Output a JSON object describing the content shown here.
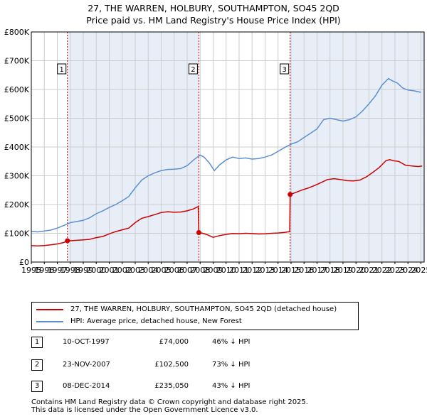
{
  "header": {
    "title_line1": "27, THE WARREN, HOLBURY, SOUTHAMPTON, SO45 2QD",
    "title_line2": "Price paid vs. HM Land Registry's House Price Index (HPI)"
  },
  "colors": {
    "property_line": "#cc0000",
    "hpi_line": "#5b8fd0",
    "shade": "#e8eef8",
    "marker_line": "#cc0000",
    "grid": "#cccccc"
  },
  "chart_data": {
    "type": "line",
    "x_range": [
      1995.0,
      2025.25
    ],
    "ylim": [
      0,
      800000
    ],
    "y_ticks": [
      0,
      100000,
      200000,
      300000,
      400000,
      500000,
      600000,
      700000,
      800000
    ],
    "y_tick_labels": [
      "£0",
      "£100K",
      "£200K",
      "£300K",
      "£400K",
      "£500K",
      "£600K",
      "£700K",
      "£800K"
    ],
    "x_tick_labels": [
      "1995",
      "1996",
      "1997",
      "1998",
      "1999",
      "2000",
      "2001",
      "2002",
      "2003",
      "2004",
      "2005",
      "2006",
      "2007",
      "2008",
      "2009",
      "2010",
      "2011",
      "2012",
      "2013",
      "2014",
      "2015",
      "2016",
      "2017",
      "2018",
      "2019",
      "2020",
      "2021",
      "2022",
      "2023",
      "2024",
      "2025"
    ],
    "grid": true,
    "shaded_ranges": [
      [
        1997.78,
        2007.9
      ],
      [
        2014.93,
        2025.25
      ]
    ],
    "markers": [
      {
        "label": "1",
        "x": 1997.78,
        "y": 74000
      },
      {
        "label": "2",
        "x": 2007.9,
        "y": 102500
      },
      {
        "label": "3",
        "x": 2014.93,
        "y": 235050
      }
    ],
    "series": [
      {
        "name": "27, THE WARREN, HOLBURY, SOUTHAMPTON, SO45 2QD (detached house)",
        "points": [
          [
            1995.0,
            57000
          ],
          [
            1995.5,
            56000
          ],
          [
            1996.0,
            57500
          ],
          [
            1996.5,
            60000
          ],
          [
            1997.0,
            63000
          ],
          [
            1997.5,
            68000
          ],
          [
            1997.78,
            74000
          ],
          [
            1998.0,
            74000
          ],
          [
            1998.5,
            75500
          ],
          [
            1999.0,
            77000
          ],
          [
            1999.5,
            79000
          ],
          [
            2000.0,
            85000
          ],
          [
            2000.5,
            89000
          ],
          [
            2001.0,
            98000
          ],
          [
            2001.5,
            106000
          ],
          [
            2002.0,
            112000
          ],
          [
            2002.5,
            118000
          ],
          [
            2003.0,
            137000
          ],
          [
            2003.5,
            152000
          ],
          [
            2004.0,
            158000
          ],
          [
            2004.5,
            165000
          ],
          [
            2005.0,
            172000
          ],
          [
            2005.5,
            175000
          ],
          [
            2006.0,
            173000
          ],
          [
            2006.5,
            174000
          ],
          [
            2007.0,
            178000
          ],
          [
            2007.5,
            185000
          ],
          [
            2007.85,
            193000
          ],
          [
            2007.9,
            102500
          ],
          [
            2008.2,
            100000
          ],
          [
            2008.6,
            94000
          ],
          [
            2009.0,
            86000
          ],
          [
            2009.5,
            92000
          ],
          [
            2010.0,
            96000
          ],
          [
            2010.5,
            99000
          ],
          [
            2011.0,
            98500
          ],
          [
            2011.5,
            100000
          ],
          [
            2012.0,
            99000
          ],
          [
            2012.5,
            97500
          ],
          [
            2013.0,
            98000
          ],
          [
            2013.5,
            100000
          ],
          [
            2014.0,
            101000
          ],
          [
            2014.5,
            103000
          ],
          [
            2014.9,
            106000
          ],
          [
            2014.93,
            235050
          ],
          [
            2015.3,
            241000
          ],
          [
            2015.8,
            250000
          ],
          [
            2016.3,
            257000
          ],
          [
            2016.8,
            266000
          ],
          [
            2017.3,
            276000
          ],
          [
            2017.8,
            287000
          ],
          [
            2018.3,
            290000
          ],
          [
            2018.8,
            287000
          ],
          [
            2019.3,
            283000
          ],
          [
            2019.8,
            282000
          ],
          [
            2020.3,
            285000
          ],
          [
            2020.8,
            296000
          ],
          [
            2021.3,
            312000
          ],
          [
            2021.8,
            329000
          ],
          [
            2022.3,
            352000
          ],
          [
            2022.6,
            356000
          ],
          [
            2022.9,
            352000
          ],
          [
            2023.3,
            350000
          ],
          [
            2023.8,
            337000
          ],
          [
            2024.3,
            334000
          ],
          [
            2024.8,
            332000
          ],
          [
            2025.1,
            334000
          ]
        ]
      },
      {
        "name": "HPI: Average price, detached house, New Forest",
        "points": [
          [
            1995.0,
            107000
          ],
          [
            1995.5,
            105000
          ],
          [
            1996.0,
            108000
          ],
          [
            1996.5,
            111000
          ],
          [
            1997.0,
            118000
          ],
          [
            1997.5,
            127000
          ],
          [
            1998.0,
            137000
          ],
          [
            1998.5,
            141000
          ],
          [
            1999.0,
            145000
          ],
          [
            1999.5,
            154000
          ],
          [
            2000.0,
            168000
          ],
          [
            2000.5,
            178000
          ],
          [
            2001.0,
            190000
          ],
          [
            2001.5,
            200000
          ],
          [
            2002.0,
            213000
          ],
          [
            2002.5,
            228000
          ],
          [
            2003.0,
            258000
          ],
          [
            2003.5,
            285000
          ],
          [
            2004.0,
            300000
          ],
          [
            2004.5,
            310000
          ],
          [
            2005.0,
            318000
          ],
          [
            2005.5,
            322000
          ],
          [
            2006.0,
            323000
          ],
          [
            2006.5,
            325000
          ],
          [
            2007.0,
            335000
          ],
          [
            2007.5,
            355000
          ],
          [
            2008.0,
            372000
          ],
          [
            2008.3,
            365000
          ],
          [
            2008.7,
            345000
          ],
          [
            2009.1,
            318000
          ],
          [
            2009.5,
            338000
          ],
          [
            2010.0,
            355000
          ],
          [
            2010.5,
            365000
          ],
          [
            2011.0,
            360000
          ],
          [
            2011.5,
            362000
          ],
          [
            2012.0,
            358000
          ],
          [
            2012.5,
            360000
          ],
          [
            2013.0,
            365000
          ],
          [
            2013.5,
            372000
          ],
          [
            2014.0,
            385000
          ],
          [
            2014.5,
            398000
          ],
          [
            2015.0,
            410000
          ],
          [
            2015.5,
            418000
          ],
          [
            2016.0,
            433000
          ],
          [
            2016.5,
            448000
          ],
          [
            2017.0,
            463000
          ],
          [
            2017.5,
            495000
          ],
          [
            2018.0,
            500000
          ],
          [
            2018.5,
            495000
          ],
          [
            2019.0,
            490000
          ],
          [
            2019.5,
            495000
          ],
          [
            2020.0,
            505000
          ],
          [
            2020.5,
            525000
          ],
          [
            2021.0,
            550000
          ],
          [
            2021.5,
            578000
          ],
          [
            2022.0,
            615000
          ],
          [
            2022.5,
            638000
          ],
          [
            2022.8,
            630000
          ],
          [
            2023.2,
            622000
          ],
          [
            2023.6,
            605000
          ],
          [
            2024.0,
            598000
          ],
          [
            2024.5,
            595000
          ],
          [
            2025.0,
            590000
          ]
        ]
      }
    ]
  },
  "legend": {
    "property_label": "27, THE WARREN, HOLBURY, SOUTHAMPTON, SO45 2QD (detached house)",
    "hpi_label": "HPI: Average price, detached house, New Forest"
  },
  "transactions": [
    {
      "num": "1",
      "date": "10-OCT-1997",
      "price": "£74,000",
      "delta": "46% ↓ HPI"
    },
    {
      "num": "2",
      "date": "23-NOV-2007",
      "price": "£102,500",
      "delta": "73% ↓ HPI"
    },
    {
      "num": "3",
      "date": "08-DEC-2014",
      "price": "£235,050",
      "delta": "43% ↓ HPI"
    }
  ],
  "footer": {
    "line1": "Contains HM Land Registry data © Crown copyright and database right 2025.",
    "line2": "This data is licensed under the Open Government Licence v3.0."
  }
}
